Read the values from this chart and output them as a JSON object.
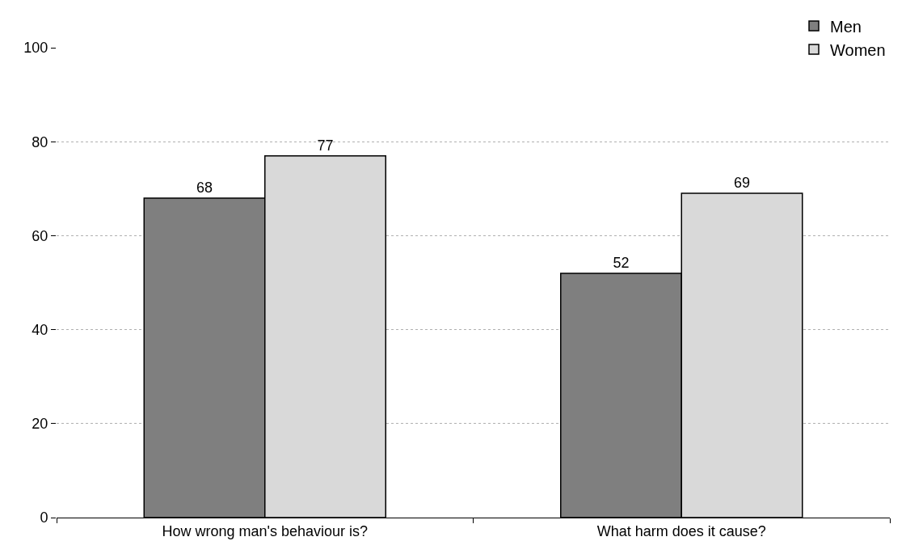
{
  "chart_data": {
    "type": "bar",
    "categories": [
      "How wrong man's behaviour is?",
      "What harm does it cause?"
    ],
    "series": [
      {
        "name": "Men",
        "color": "#7f7f7f",
        "values": [
          68,
          52
        ]
      },
      {
        "name": "Women",
        "color": "#d9d9d9",
        "values": [
          77,
          69
        ]
      }
    ],
    "ylim": [
      0,
      100
    ],
    "yticks": [
      0,
      20,
      40,
      60,
      80,
      100
    ],
    "grid": "y",
    "legend": "top right",
    "data_labels": true
  }
}
